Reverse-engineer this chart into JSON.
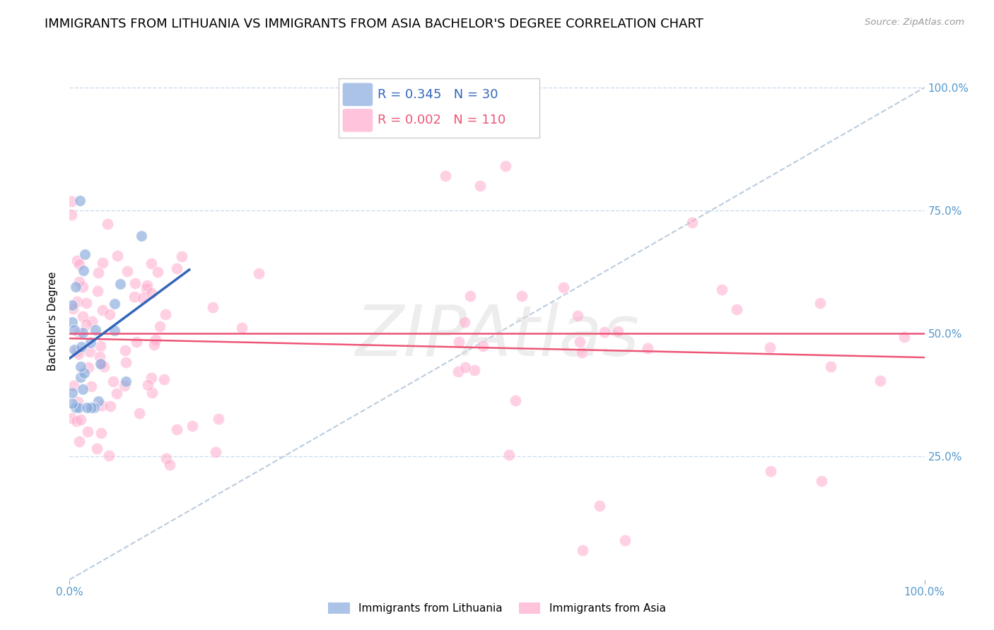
{
  "title": "IMMIGRANTS FROM LITHUANIA VS IMMIGRANTS FROM ASIA BACHELOR'S DEGREE CORRELATION CHART",
  "source": "Source: ZipAtlas.com",
  "ylabel": "Bachelor's Degree",
  "watermark": "ZIPAtlas",
  "ytick_labels": [
    "100.0%",
    "75.0%",
    "50.0%",
    "25.0%"
  ],
  "ytick_values": [
    1.0,
    0.75,
    0.5,
    0.25
  ],
  "xlim": [
    0.0,
    1.0
  ],
  "ylim": [
    0.0,
    1.05
  ],
  "blue_R": 0.345,
  "blue_N": 30,
  "pink_R": 0.002,
  "pink_N": 110,
  "blue_color": "#88AADD",
  "pink_color": "#FFAACC",
  "blue_line_color": "#3366BB",
  "pink_line_color": "#EE5577",
  "dashed_line_color": "#BBCCDD",
  "horizontal_line_color": "#EE5577",
  "background_color": "#FFFFFF",
  "grid_color": "#CCDDEE",
  "title_fontsize": 13,
  "axis_label_fontsize": 11,
  "tick_fontsize": 11
}
